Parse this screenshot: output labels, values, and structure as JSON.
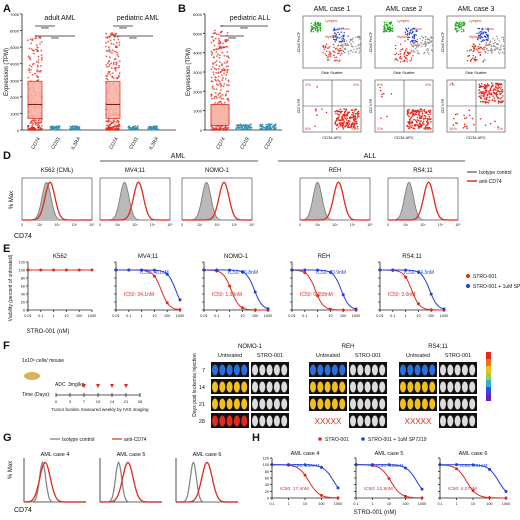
{
  "colors": {
    "red": "#e02a1f",
    "blue": "#1f3fd6",
    "gray": "#b9b9b9",
    "dark": "#333333"
  },
  "panelA": {
    "letter": "A",
    "ylabel": "Expression (TPM)",
    "groups": [
      {
        "title": "adult AML",
        "cats": [
          "CD74",
          "CD33",
          "IL3RA"
        ]
      },
      {
        "title": "pediatric AML",
        "cats": [
          "CD74",
          "CD33",
          "IL3RA"
        ]
      }
    ],
    "yticks": [
      "0",
      "1000",
      "2000",
      "3000",
      "4000",
      "5000",
      "6000",
      "7000"
    ],
    "sig": [
      "****",
      "****",
      "****",
      "****"
    ]
  },
  "panelB": {
    "letter": "B",
    "title": "pediatric ALL",
    "ylabel": "Expression (TPM)",
    "cats": [
      "CD74",
      "CD19",
      "CD22"
    ],
    "yticks": [
      "0",
      "1000",
      "2000",
      "3000",
      "4000",
      "5000",
      "6000"
    ],
    "sig": [
      "****",
      "****"
    ]
  },
  "panelC": {
    "letter": "C",
    "cases": [
      "AML case 1",
      "AML case 2",
      "AML case 3"
    ],
    "top_xlabel": "Side Scatter",
    "top_ylabel": "CD45 PerCP",
    "bot_xlabel": "CD34 APC",
    "bot_ylabel": "CD74 PE",
    "gates": [
      "Lymphs",
      "Mono",
      "Myeloid",
      "AML"
    ],
    "quads": [
      [
        "1%",
        "0%",
        "93%",
        "6%"
      ],
      [
        "6%",
        "0%",
        "92%",
        "2%"
      ],
      [
        "1%",
        "81%",
        "2%",
        "16%"
      ]
    ]
  },
  "panelD": {
    "letter": "D",
    "ylabel": "% Max",
    "xlabel": "CD74",
    "group_aml": "AML",
    "group_all": "ALL",
    "cells": [
      "K562 (CML)",
      "MV4;11",
      "NOMO-1",
      "REH",
      "RS4;11"
    ],
    "legend": [
      "Isotype control",
      "anti-CD74"
    ],
    "xticks": [
      "0",
      "10²",
      "10³",
      "10⁴",
      "10⁵"
    ]
  },
  "panelE": {
    "letter": "E",
    "ylabel": "Viability (percent of untreated)",
    "xlabel": "STRO-001 (nM)",
    "xticks": [
      "0.01",
      "0.1",
      "1",
      "10",
      "100",
      "1000"
    ],
    "yticks": [
      "0",
      "20",
      "40",
      "60",
      "80",
      "100",
      "120"
    ],
    "cells": [
      "K562",
      "MV4;11",
      "NOMO-1",
      "REH",
      "RS4;11"
    ],
    "legend": [
      "STRO-001",
      "STRO-001 + 1uM SP7219"
    ],
    "curves": [
      {
        "red_ic50": null,
        "blue_ic50": null
      },
      {
        "red_ic50": "IC50: 34.1nM",
        "blue_ic50": "IC50: 461nM"
      },
      {
        "red_ic50": "IC50: 1.33nM",
        "blue_ic50": "IC50: 86.8nM"
      },
      {
        "red_ic50": "IC50: 0.658nM",
        "blue_ic50": "IC50: 70.9nM"
      },
      {
        "red_ic50": "IC50: 3.0nM",
        "blue_ic50": "IC50: 74.3nM"
      }
    ],
    "ic50_values": {
      "MV4;11": [
        34.1,
        461
      ],
      "NOMO-1": [
        1.33,
        86.8
      ],
      "REH": [
        0.658,
        70.9
      ],
      "RS4;11": [
        3.0,
        74.3
      ]
    }
  },
  "panelF": {
    "letter": "F",
    "injection": "1x10⁶ cells/ mouse",
    "adc": "ADC",
    "dose": "3mg/kg",
    "time_label": "Time (Days):",
    "days_axis": [
      "0",
      "3",
      "7",
      "10",
      "14",
      "21",
      "28"
    ],
    "tumor_note": "Tumor burden measured weekly by IVIS imaging",
    "ylabel": "Days post leukemia injection",
    "days": [
      "7",
      "14",
      "21",
      "28"
    ],
    "models": [
      {
        "name": "NOMO-1",
        "cols": [
          "Untreated",
          "STRO-001"
        ]
      },
      {
        "name": "REH",
        "cols": [
          "Untreated",
          "STRO-001"
        ]
      },
      {
        "name": "RS4;11",
        "cols": [
          "Untreated",
          "STRO-001"
        ]
      }
    ],
    "dead": "XXXXX"
  },
  "panelG": {
    "letter": "G",
    "ylabel": "% Max",
    "xlabel": "CD74",
    "legend": [
      "Isotype control",
      "anti-CD74"
    ],
    "cases": [
      "AML case 4",
      "AML case 5",
      "AML case 6"
    ]
  },
  "panelH": {
    "letter": "H",
    "legend": [
      "STRO-001",
      "STRO-001 + 1uM SP7219"
    ],
    "xlabel": "STRO-001 (nM)",
    "cases": [
      {
        "name": "AML case 4",
        "red_ic50": "IC50: 17.4nM",
        "blue_ic50": "IC50: 556nM"
      },
      {
        "name": "AML case 5",
        "red_ic50": "IC50: 12.8nM",
        "blue_ic50": "IC50: 485nM"
      },
      {
        "name": "AML case 6",
        "red_ic50": "IC50: 4.07nM",
        "blue_ic50": "IC50: 361nM"
      }
    ],
    "xticks": [
      "0.1",
      "1",
      "10",
      "100",
      "1000"
    ],
    "yticks": [
      "0",
      "20",
      "40",
      "60",
      "80",
      "100",
      "120"
    ]
  }
}
